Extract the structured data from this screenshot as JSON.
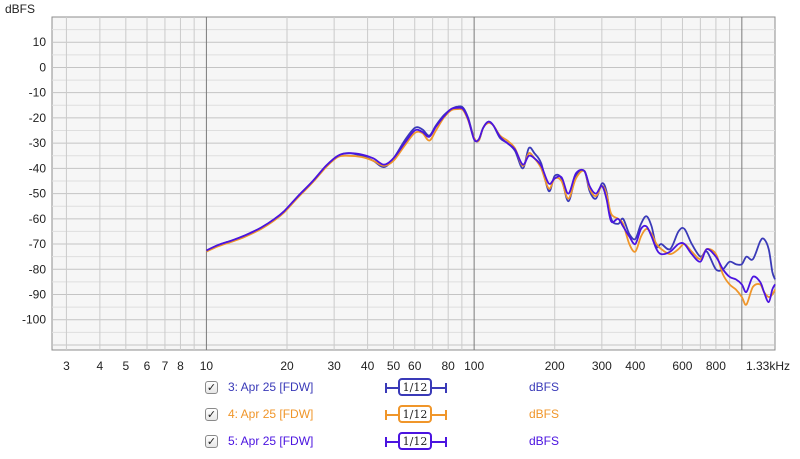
{
  "chart_data": {
    "type": "line",
    "title": "",
    "xlabel": "",
    "ylabel": "dBFS",
    "xscale": "log",
    "xlim": [
      2.65,
      1330
    ],
    "ylim": [
      -112,
      20
    ],
    "grid": true,
    "y_ticks": [
      10,
      0,
      -10,
      -20,
      -30,
      -40,
      -50,
      -60,
      -70,
      -80,
      -90,
      -100
    ],
    "x_ticks": [
      {
        "value": 3,
        "label": "3"
      },
      {
        "value": 4,
        "label": "4"
      },
      {
        "value": 5,
        "label": "5"
      },
      {
        "value": 6,
        "label": "6"
      },
      {
        "value": 7,
        "label": "7"
      },
      {
        "value": 8,
        "label": "8"
      },
      {
        "value": 10,
        "label": "10"
      },
      {
        "value": 20,
        "label": "20"
      },
      {
        "value": 30,
        "label": "30"
      },
      {
        "value": 40,
        "label": "40"
      },
      {
        "value": 50,
        "label": "50"
      },
      {
        "value": 60,
        "label": "60"
      },
      {
        "value": 80,
        "label": "80"
      },
      {
        "value": 100,
        "label": "100"
      },
      {
        "value": 200,
        "label": "200"
      },
      {
        "value": 300,
        "label": "300"
      },
      {
        "value": 400,
        "label": "400"
      },
      {
        "value": 600,
        "label": "600"
      },
      {
        "value": 800,
        "label": "800"
      },
      {
        "value": 1330,
        "label": "1.33kHz"
      }
    ],
    "series": [
      {
        "name": "3: Apr 25 [FDW]",
        "smoothing": "1/12",
        "unit": "dBFS",
        "color": "#3a3ab8",
        "points": [
          [
            10,
            -73
          ],
          [
            11,
            -70.5
          ],
          [
            12.5,
            -68.5
          ],
          [
            14,
            -66.5
          ],
          [
            16,
            -63.5
          ],
          [
            18,
            -60
          ],
          [
            19.5,
            -57
          ],
          [
            22,
            -51
          ],
          [
            25,
            -45
          ],
          [
            28,
            -39
          ],
          [
            31,
            -35
          ],
          [
            34,
            -34
          ],
          [
            38,
            -35
          ],
          [
            42,
            -37
          ],
          [
            46,
            -39.5
          ],
          [
            50,
            -36
          ],
          [
            55,
            -29
          ],
          [
            60,
            -24
          ],
          [
            64,
            -24.5
          ],
          [
            68,
            -27
          ],
          [
            72,
            -23
          ],
          [
            77,
            -19
          ],
          [
            82,
            -16.5
          ],
          [
            87,
            -15.5
          ],
          [
            91,
            -16
          ],
          [
            95,
            -20
          ],
          [
            100,
            -28
          ],
          [
            104,
            -29
          ],
          [
            108,
            -24
          ],
          [
            113,
            -21.5
          ],
          [
            118,
            -23
          ],
          [
            125,
            -28
          ],
          [
            133,
            -30
          ],
          [
            142,
            -33
          ],
          [
            152,
            -40
          ],
          [
            160,
            -32
          ],
          [
            168,
            -34
          ],
          [
            178,
            -38
          ],
          [
            190,
            -49
          ],
          [
            200,
            -43
          ],
          [
            212,
            -44
          ],
          [
            225,
            -53
          ],
          [
            240,
            -43
          ],
          [
            258,
            -41
          ],
          [
            270,
            -49
          ],
          [
            285,
            -52
          ],
          [
            300,
            -46
          ],
          [
            312,
            -49
          ],
          [
            325,
            -60
          ],
          [
            345,
            -62
          ],
          [
            360,
            -60
          ],
          [
            380,
            -66
          ],
          [
            400,
            -68
          ],
          [
            420,
            -62
          ],
          [
            440,
            -59
          ],
          [
            460,
            -63
          ],
          [
            480,
            -71
          ],
          [
            500,
            -70
          ],
          [
            540,
            -72
          ],
          [
            580,
            -65
          ],
          [
            610,
            -64
          ],
          [
            650,
            -70
          ],
          [
            700,
            -75
          ],
          [
            740,
            -73
          ],
          [
            800,
            -80
          ],
          [
            850,
            -80
          ],
          [
            900,
            -77
          ],
          [
            950,
            -78
          ],
          [
            1000,
            -78
          ],
          [
            1040,
            -75
          ],
          [
            1100,
            -76
          ],
          [
            1170,
            -69
          ],
          [
            1210,
            -68
          ],
          [
            1260,
            -72
          ],
          [
            1300,
            -81
          ],
          [
            1330,
            -84
          ]
        ]
      },
      {
        "name": "4: Apr 25 [FDW]",
        "smoothing": "1/12",
        "unit": "dBFS",
        "color": "#f0962a",
        "points": [
          [
            10,
            -73
          ],
          [
            11,
            -71
          ],
          [
            12.5,
            -69
          ],
          [
            14,
            -67
          ],
          [
            16,
            -64
          ],
          [
            18,
            -60.5
          ],
          [
            19.5,
            -57.5
          ],
          [
            22,
            -51.5
          ],
          [
            25,
            -45.5
          ],
          [
            28,
            -39.5
          ],
          [
            31,
            -35.5
          ],
          [
            34,
            -35
          ],
          [
            38,
            -35.5
          ],
          [
            42,
            -37
          ],
          [
            46,
            -39
          ],
          [
            50,
            -37
          ],
          [
            55,
            -31
          ],
          [
            60,
            -26
          ],
          [
            64,
            -26
          ],
          [
            68,
            -29
          ],
          [
            72,
            -25
          ],
          [
            77,
            -20
          ],
          [
            82,
            -17
          ],
          [
            87,
            -16.5
          ],
          [
            91,
            -17
          ],
          [
            95,
            -21
          ],
          [
            100,
            -28
          ],
          [
            104,
            -29
          ],
          [
            108,
            -24
          ],
          [
            113,
            -22
          ],
          [
            118,
            -23
          ],
          [
            125,
            -27
          ],
          [
            133,
            -29
          ],
          [
            142,
            -32
          ],
          [
            152,
            -39
          ],
          [
            160,
            -34
          ],
          [
            168,
            -36
          ],
          [
            178,
            -40
          ],
          [
            190,
            -48
          ],
          [
            200,
            -44
          ],
          [
            212,
            -45
          ],
          [
            225,
            -52
          ],
          [
            240,
            -44
          ],
          [
            258,
            -41
          ],
          [
            270,
            -48
          ],
          [
            285,
            -51
          ],
          [
            300,
            -47
          ],
          [
            312,
            -50
          ],
          [
            325,
            -58
          ],
          [
            345,
            -60
          ],
          [
            360,
            -62
          ],
          [
            380,
            -70
          ],
          [
            400,
            -73
          ],
          [
            420,
            -67
          ],
          [
            440,
            -64
          ],
          [
            460,
            -66
          ],
          [
            480,
            -70
          ],
          [
            500,
            -72
          ],
          [
            540,
            -74
          ],
          [
            580,
            -72
          ],
          [
            610,
            -70
          ],
          [
            650,
            -73
          ],
          [
            700,
            -76
          ],
          [
            740,
            -72
          ],
          [
            800,
            -74
          ],
          [
            850,
            -82
          ],
          [
            900,
            -86
          ],
          [
            950,
            -88
          ],
          [
            1000,
            -91
          ],
          [
            1040,
            -94
          ],
          [
            1100,
            -87
          ],
          [
            1170,
            -86
          ],
          [
            1210,
            -89
          ],
          [
            1260,
            -91
          ],
          [
            1300,
            -90
          ],
          [
            1330,
            -88
          ]
        ]
      },
      {
        "name": "5: Apr 25 [FDW]",
        "smoothing": "1/12",
        "unit": "dBFS",
        "color": "#4b14e0",
        "points": [
          [
            10,
            -72.5
          ],
          [
            11,
            -70.5
          ],
          [
            12.5,
            -68.5
          ],
          [
            14,
            -66.5
          ],
          [
            16,
            -63.5
          ],
          [
            18,
            -60
          ],
          [
            19.5,
            -57
          ],
          [
            22,
            -51
          ],
          [
            25,
            -45
          ],
          [
            28,
            -39
          ],
          [
            31,
            -35
          ],
          [
            34,
            -34
          ],
          [
            38,
            -34.5
          ],
          [
            42,
            -36
          ],
          [
            46,
            -38.5
          ],
          [
            50,
            -36
          ],
          [
            55,
            -30
          ],
          [
            60,
            -25
          ],
          [
            64,
            -25.5
          ],
          [
            68,
            -27.5
          ],
          [
            72,
            -23.5
          ],
          [
            77,
            -19.5
          ],
          [
            82,
            -16.5
          ],
          [
            87,
            -16
          ],
          [
            91,
            -16.5
          ],
          [
            95,
            -20.5
          ],
          [
            100,
            -28.5
          ],
          [
            104,
            -28.5
          ],
          [
            108,
            -24
          ],
          [
            113,
            -21.5
          ],
          [
            118,
            -23
          ],
          [
            125,
            -27.5
          ],
          [
            133,
            -30
          ],
          [
            142,
            -32.5
          ],
          [
            152,
            -38.5
          ],
          [
            160,
            -35
          ],
          [
            168,
            -36
          ],
          [
            178,
            -39
          ],
          [
            190,
            -46
          ],
          [
            200,
            -44
          ],
          [
            212,
            -43.5
          ],
          [
            225,
            -50
          ],
          [
            240,
            -42
          ],
          [
            258,
            -41
          ],
          [
            270,
            -47
          ],
          [
            285,
            -50
          ],
          [
            300,
            -47
          ],
          [
            312,
            -52
          ],
          [
            325,
            -61
          ],
          [
            345,
            -60
          ],
          [
            360,
            -63
          ],
          [
            380,
            -67
          ],
          [
            400,
            -70
          ],
          [
            420,
            -64
          ],
          [
            440,
            -63
          ],
          [
            460,
            -67
          ],
          [
            480,
            -72
          ],
          [
            500,
            -74
          ],
          [
            540,
            -73
          ],
          [
            580,
            -70
          ],
          [
            610,
            -70
          ],
          [
            650,
            -74
          ],
          [
            700,
            -77
          ],
          [
            740,
            -72
          ],
          [
            800,
            -75
          ],
          [
            850,
            -80
          ],
          [
            900,
            -83
          ],
          [
            950,
            -84
          ],
          [
            1000,
            -86
          ],
          [
            1040,
            -89
          ],
          [
            1100,
            -83
          ],
          [
            1170,
            -85
          ],
          [
            1210,
            -89
          ],
          [
            1260,
            -93
          ],
          [
            1300,
            -88
          ],
          [
            1330,
            -86
          ]
        ]
      }
    ]
  }
}
